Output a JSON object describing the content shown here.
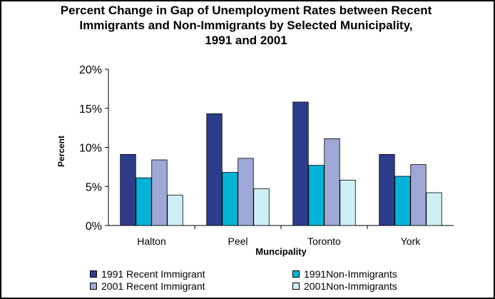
{
  "chart_data": {
    "type": "bar",
    "title_lines": [
      "Percent Change in Gap of Unemployment Rates between Recent",
      "Immigrants and Non-Immigrants by Selected Municipality,",
      "1991 and 2001"
    ],
    "xlabel": "Muncipality",
    "ylabel": "Percent",
    "categories": [
      "Halton",
      "Peel",
      "Toronto",
      "York"
    ],
    "ylim": [
      0,
      20
    ],
    "yticks": [
      "0%",
      "5%",
      "10%",
      "15%",
      "20%"
    ],
    "grid": false,
    "legend_position": "bottom",
    "series": [
      {
        "name": "1991 Recent Immigrant",
        "color": "#2E3C8C",
        "values": [
          9.1,
          14.3,
          15.8,
          9.1
        ]
      },
      {
        "name": "1991Non-Immigrants",
        "color": "#05B3D6",
        "values": [
          6.1,
          6.8,
          7.7,
          6.3
        ]
      },
      {
        "name": "2001 Recent Immigrant",
        "color": "#9EA7D6",
        "values": [
          8.4,
          8.6,
          11.1,
          7.8
        ]
      },
      {
        "name": "2001Non-Immigrants",
        "color": "#CFEFF7",
        "values": [
          3.9,
          4.7,
          5.8,
          4.2
        ]
      }
    ]
  }
}
